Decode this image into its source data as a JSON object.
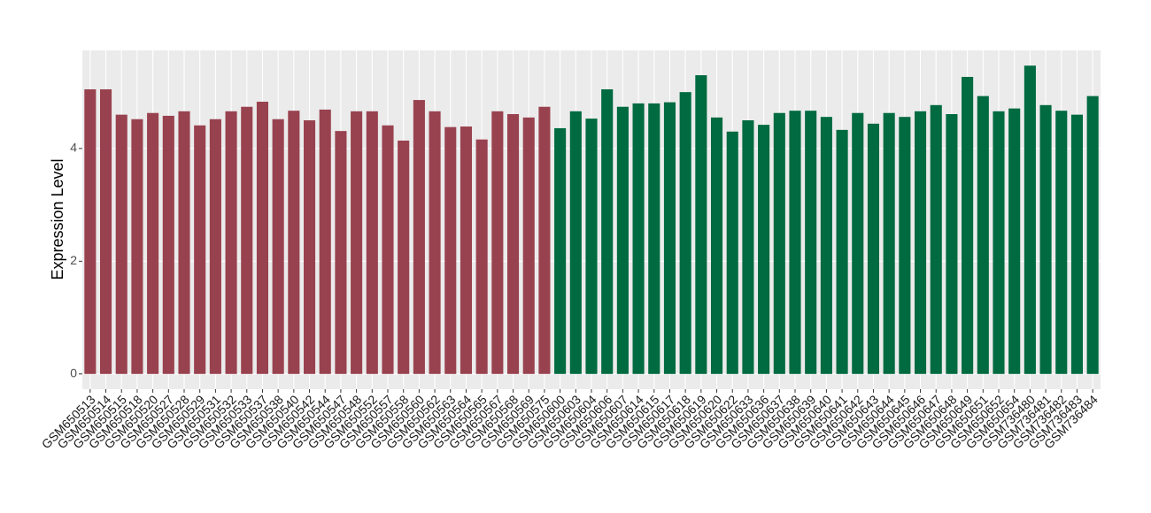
{
  "chart_data": {
    "type": "bar",
    "y_label": "Expression Level",
    "categories": [
      "GSM650513",
      "GSM650514",
      "GSM650515",
      "GSM650518",
      "GSM650520",
      "GSM650527",
      "GSM650528",
      "GSM650529",
      "GSM650531",
      "GSM650532",
      "GSM650533",
      "GSM650537",
      "GSM650538",
      "GSM650540",
      "GSM650542",
      "GSM650544",
      "GSM650547",
      "GSM650548",
      "GSM650552",
      "GSM650557",
      "GSM650558",
      "GSM650560",
      "GSM650562",
      "GSM650563",
      "GSM650564",
      "GSM650565",
      "GSM650567",
      "GSM650568",
      "GSM650569",
      "GSM650575",
      "GSM650600",
      "GSM650603",
      "GSM650604",
      "GSM650606",
      "GSM650607",
      "GSM650614",
      "GSM650615",
      "GSM650617",
      "GSM650618",
      "GSM650619",
      "GSM650620",
      "GSM650622",
      "GSM650633",
      "GSM650636",
      "GSM650637",
      "GSM650638",
      "GSM650639",
      "GSM650640",
      "GSM650641",
      "GSM650642",
      "GSM650643",
      "GSM650644",
      "GSM650645",
      "GSM650646",
      "GSM650647",
      "GSM650648",
      "GSM650649",
      "GSM650651",
      "GSM650652",
      "GSM650654",
      "GSM736480",
      "GSM736481",
      "GSM736482",
      "GSM736483",
      "GSM736484"
    ],
    "values": [
      5.05,
      5.05,
      4.6,
      4.52,
      4.63,
      4.58,
      4.66,
      4.41,
      4.52,
      4.66,
      4.74,
      4.83,
      4.52,
      4.67,
      4.5,
      4.69,
      4.31,
      4.66,
      4.66,
      4.41,
      4.14,
      4.86,
      4.66,
      4.38,
      4.39,
      4.16,
      4.66,
      4.61,
      4.55,
      4.74,
      4.36,
      4.66,
      4.53,
      5.05,
      4.74,
      4.8,
      4.8,
      4.82,
      5.0,
      5.3,
      4.55,
      4.3,
      4.5,
      4.42,
      4.63,
      4.67,
      4.67,
      4.56,
      4.33,
      4.63,
      4.44,
      4.63,
      4.56,
      4.66,
      4.77,
      4.61,
      5.27,
      4.93,
      4.66,
      4.71,
      5.47,
      4.77,
      4.67,
      4.6,
      4.93
    ],
    "colors": [
      "#99424f",
      "#99424f",
      "#99424f",
      "#99424f",
      "#99424f",
      "#99424f",
      "#99424f",
      "#99424f",
      "#99424f",
      "#99424f",
      "#99424f",
      "#99424f",
      "#99424f",
      "#99424f",
      "#99424f",
      "#99424f",
      "#99424f",
      "#99424f",
      "#99424f",
      "#99424f",
      "#99424f",
      "#99424f",
      "#99424f",
      "#99424f",
      "#99424f",
      "#99424f",
      "#99424f",
      "#99424f",
      "#99424f",
      "#99424f",
      "#006a40",
      "#006a40",
      "#006a40",
      "#006a40",
      "#006a40",
      "#006a40",
      "#006a40",
      "#006a40",
      "#006a40",
      "#006a40",
      "#006a40",
      "#006a40",
      "#006a40",
      "#006a40",
      "#006a40",
      "#006a40",
      "#006a40",
      "#006a40",
      "#006a40",
      "#006a40",
      "#006a40",
      "#006a40",
      "#006a40",
      "#006a40",
      "#006a40",
      "#006a40",
      "#006a40",
      "#006a40",
      "#006a40",
      "#006a40",
      "#006a40",
      "#006a40",
      "#006a40",
      "#006a40",
      "#006a40"
    ],
    "ylim": [
      -0.27,
      5.74
    ],
    "yticks": [
      0,
      2,
      4
    ],
    "grid": true
  }
}
